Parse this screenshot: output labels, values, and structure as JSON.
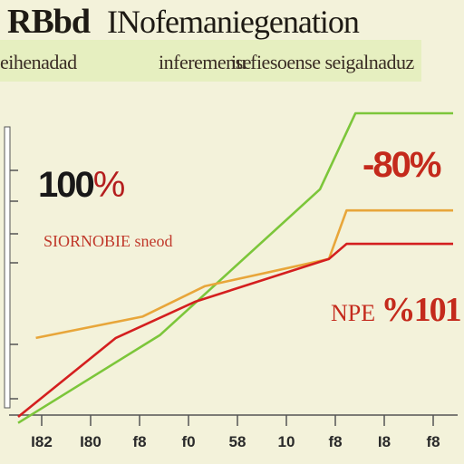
{
  "header": {
    "title_part1": "RBbd",
    "title_part2": "INofemaniegenation",
    "subtitle_part1": "eihenadad",
    "subtitle_part2": "inferemense",
    "subtitle_part3": "iu fiesoense seigalnaduz"
  },
  "annotations": {
    "left_value": "100",
    "left_value_pct": "%",
    "left_note": "SIORNOBIE sneod",
    "right_value": "-80%",
    "right_lower_prefix": "NPE",
    "right_lower_value": "%101"
  },
  "chart_data": {
    "type": "line",
    "title": "",
    "xlabel": "",
    "ylabel": "",
    "x_ticks": [
      "I82",
      "I80",
      "f8",
      "f0",
      "58",
      "10",
      "f8",
      "I8",
      "f8"
    ],
    "x_tick_positions": [
      0,
      1,
      2,
      3,
      4,
      5,
      6,
      7,
      8
    ],
    "y_ticks": [
      "",
      "",
      "",
      "",
      "",
      "",
      ""
    ],
    "xlim": [
      -0.6,
      9.2
    ],
    "ylim": [
      0,
      100
    ],
    "grid": false,
    "series": [
      {
        "color": "#7cc63a",
        "x": [
          -0.6,
          2.6,
          6.2,
          7.0,
          9.2
        ],
        "y": [
          -2,
          27,
          75,
          100,
          100
        ]
      },
      {
        "color": "#e8a63a",
        "x": [
          -0.2,
          2.2,
          3.6,
          6.4,
          6.8,
          9.2
        ],
        "y": [
          26,
          33,
          43,
          52,
          68,
          68
        ]
      },
      {
        "color": "#d41f1f",
        "x": [
          -0.6,
          1.6,
          3.4,
          6.4,
          6.8,
          9.2
        ],
        "y": [
          0,
          26,
          38,
          52,
          57,
          57
        ]
      }
    ],
    "colors": {
      "axis": "#555555",
      "frame": "#ffffff"
    }
  }
}
